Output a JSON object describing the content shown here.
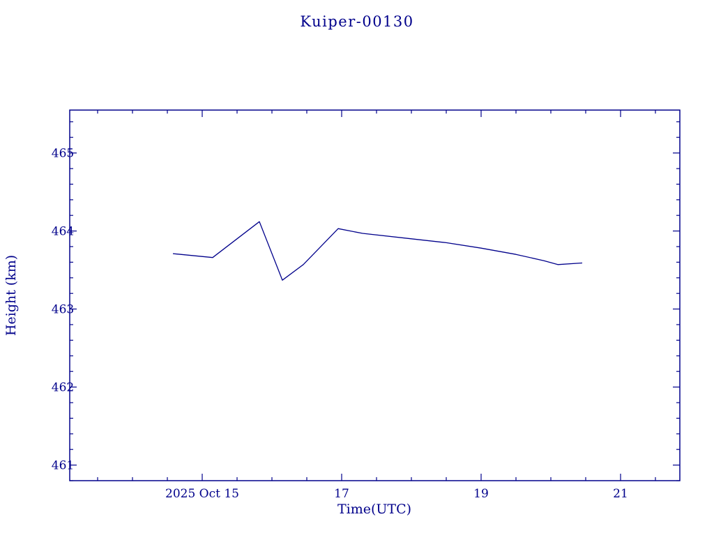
{
  "page": {
    "background": "#ffffff",
    "accent_color": "#00008b"
  },
  "chart_data": {
    "type": "line",
    "title": "Kuiper-00130",
    "xlabel": "Time(UTC)",
    "ylabel": "Height (km)",
    "xlim": [
      13.1,
      21.85
    ],
    "ylim": [
      460.8,
      465.55
    ],
    "x_major_ticks": [
      15,
      17,
      19,
      21
    ],
    "x_tick_labels": [
      "2025 Oct 15",
      "17",
      "19",
      "21"
    ],
    "x_minor_step": 0.5,
    "y_major_ticks": [
      461,
      462,
      463,
      464,
      465
    ],
    "y_tick_labels": [
      "461",
      "462",
      "463",
      "464",
      "465"
    ],
    "y_minor_step": 0.2,
    "grid": false,
    "legend_position": "none",
    "line_color": "#00008b",
    "series": [
      {
        "name": "height",
        "x": [
          14.58,
          15.15,
          15.82,
          16.15,
          16.45,
          16.95,
          17.3,
          18.0,
          18.5,
          19.0,
          19.5,
          19.9,
          20.1,
          20.45
        ],
        "y": [
          463.71,
          463.66,
          464.12,
          463.37,
          463.57,
          464.03,
          463.97,
          463.9,
          463.85,
          463.78,
          463.7,
          463.62,
          463.57,
          463.59
        ]
      }
    ]
  }
}
